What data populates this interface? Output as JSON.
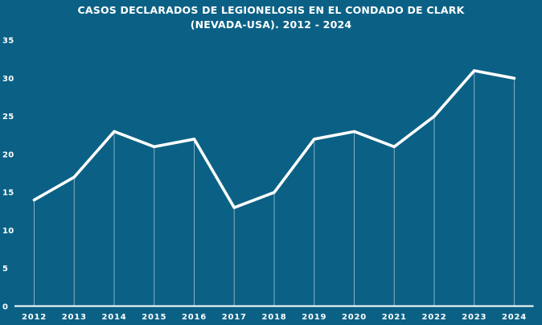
{
  "title": {
    "line1": "CASOS DECLARADOS DE LEGIONELOSIS EN EL CONDADO DE CLARK",
    "line2": "(NEVADA-USA). 2012 - 2024"
  },
  "colors": {
    "background": "#0b6185",
    "line": "#ffffff",
    "text": "#ffffff",
    "axis": "#ffffff",
    "dropline": "rgba(255,255,255,0.5)"
  },
  "chart_data": {
    "type": "line",
    "title": "CASOS DECLARADOS DE LEGIONELOSIS EN EL CONDADO DE CLARK (NEVADA-USA). 2012 - 2024",
    "categories": [
      "2012",
      "2013",
      "2014",
      "2015",
      "2016",
      "2017",
      "2018",
      "2019",
      "2020",
      "2021",
      "2022",
      "2023",
      "2024"
    ],
    "values": [
      14,
      17,
      23,
      21,
      22,
      13,
      15,
      22,
      23,
      21,
      25,
      31,
      30
    ],
    "xlabel": "",
    "ylabel": "",
    "ylim": [
      0,
      35
    ],
    "yticks": [
      0,
      5,
      10,
      15,
      20,
      25,
      30,
      35
    ],
    "grid": "off",
    "legend": "none",
    "series_color": "#ffffff",
    "droplines": true
  }
}
